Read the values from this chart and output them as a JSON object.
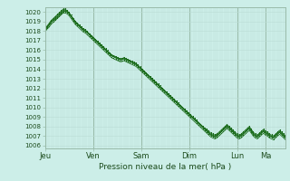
{
  "ylabel": "Pression niveau de la mer( hPa )",
  "bg_color": "#cceee8",
  "grid_minor_color": "#bbddd5",
  "grid_major_color": "#aaccbb",
  "line_color": "#1a6b1a",
  "ylim": [
    1005.7,
    1020.5
  ],
  "yticks": [
    1006,
    1007,
    1008,
    1009,
    1010,
    1011,
    1012,
    1013,
    1014,
    1015,
    1016,
    1017,
    1018,
    1019,
    1020
  ],
  "day_labels": [
    "Jeu",
    "Ven",
    "Sam",
    "Dim",
    "Lun",
    "Ma"
  ],
  "day_positions": [
    0,
    0.2,
    0.4,
    0.6,
    0.8,
    0.9167
  ],
  "n_points": 120,
  "series": [
    [
      1018.0,
      1018.3,
      1018.6,
      1018.9,
      1019.1,
      1019.2,
      1019.4,
      1019.6,
      1019.8,
      1020.0,
      1020.1,
      1020.0,
      1019.8,
      1019.5,
      1019.2,
      1018.9,
      1018.7,
      1018.5,
      1018.3,
      1018.1,
      1018.0,
      1017.8,
      1017.6,
      1017.4,
      1017.2,
      1017.0,
      1016.8,
      1016.6,
      1016.4,
      1016.2,
      1016.0,
      1015.8,
      1015.6,
      1015.4,
      1015.3,
      1015.2,
      1015.1,
      1015.0,
      1015.0,
      1015.1,
      1015.0,
      1014.9,
      1014.8,
      1014.7,
      1014.6,
      1014.5,
      1014.3,
      1014.1,
      1013.9,
      1013.7,
      1013.5,
      1013.3,
      1013.1,
      1012.9,
      1012.7,
      1012.5,
      1012.3,
      1012.1,
      1011.9,
      1011.7,
      1011.5,
      1011.3,
      1011.1,
      1010.9,
      1010.7,
      1010.5,
      1010.3,
      1010.1,
      1009.9,
      1009.7,
      1009.5,
      1009.3,
      1009.1,
      1008.9,
      1008.7,
      1008.5,
      1008.3,
      1008.1,
      1007.9,
      1007.7,
      1007.5,
      1007.3,
      1007.1,
      1007.0,
      1006.9,
      1007.0,
      1007.2,
      1007.4,
      1007.6,
      1007.8,
      1008.0,
      1007.8,
      1007.6,
      1007.4,
      1007.2,
      1007.0,
      1006.9,
      1007.0,
      1007.2,
      1007.4,
      1007.6,
      1007.8,
      1007.5,
      1007.2,
      1007.0,
      1006.9,
      1007.1,
      1007.3,
      1007.5,
      1007.3,
      1007.2,
      1007.0,
      1006.9,
      1006.8,
      1007.0,
      1007.2,
      1007.4,
      1007.2,
      1007.0,
      1006.8
    ],
    [
      1018.2,
      1018.5,
      1018.7,
      1019.0,
      1019.2,
      1019.4,
      1019.6,
      1019.8,
      1020.0,
      1020.2,
      1020.2,
      1020.1,
      1019.9,
      1019.6,
      1019.3,
      1019.0,
      1018.8,
      1018.6,
      1018.4,
      1018.2,
      1018.1,
      1017.9,
      1017.7,
      1017.5,
      1017.3,
      1017.1,
      1016.9,
      1016.7,
      1016.5,
      1016.3,
      1016.1,
      1015.9,
      1015.7,
      1015.5,
      1015.4,
      1015.3,
      1015.2,
      1015.1,
      1015.1,
      1015.2,
      1015.1,
      1015.0,
      1014.9,
      1014.8,
      1014.7,
      1014.6,
      1014.4,
      1014.2,
      1014.0,
      1013.8,
      1013.6,
      1013.4,
      1013.2,
      1013.0,
      1012.8,
      1012.6,
      1012.4,
      1012.2,
      1012.0,
      1011.8,
      1011.6,
      1011.4,
      1011.2,
      1011.0,
      1010.8,
      1010.6,
      1010.4,
      1010.2,
      1010.0,
      1009.8,
      1009.6,
      1009.4,
      1009.2,
      1009.0,
      1008.8,
      1008.6,
      1008.4,
      1008.2,
      1008.0,
      1007.8,
      1007.6,
      1007.4,
      1007.2,
      1007.1,
      1007.0,
      1007.1,
      1007.3,
      1007.5,
      1007.7,
      1007.9,
      1008.1,
      1007.9,
      1007.7,
      1007.5,
      1007.3,
      1007.1,
      1007.0,
      1007.1,
      1007.3,
      1007.5,
      1007.7,
      1007.9,
      1007.6,
      1007.3,
      1007.1,
      1007.0,
      1007.2,
      1007.4,
      1007.6,
      1007.4,
      1007.3,
      1007.1,
      1007.0,
      1006.9,
      1007.1,
      1007.3,
      1007.5,
      1007.3,
      1007.1,
      1006.9
    ],
    [
      1018.1,
      1018.4,
      1018.6,
      1018.9,
      1019.1,
      1019.3,
      1019.5,
      1019.7,
      1019.9,
      1020.1,
      1020.1,
      1020.0,
      1019.8,
      1019.5,
      1019.2,
      1018.9,
      1018.7,
      1018.5,
      1018.3,
      1018.1,
      1018.0,
      1017.8,
      1017.6,
      1017.4,
      1017.2,
      1017.0,
      1016.8,
      1016.6,
      1016.4,
      1016.2,
      1016.0,
      1015.8,
      1015.6,
      1015.4,
      1015.3,
      1015.2,
      1015.1,
      1015.0,
      1015.0,
      1015.1,
      1015.0,
      1014.9,
      1014.8,
      1014.7,
      1014.6,
      1014.5,
      1014.3,
      1014.1,
      1013.9,
      1013.7,
      1013.5,
      1013.3,
      1013.1,
      1012.9,
      1012.7,
      1012.5,
      1012.3,
      1012.1,
      1011.9,
      1011.7,
      1011.5,
      1011.3,
      1011.1,
      1010.9,
      1010.7,
      1010.5,
      1010.3,
      1010.1,
      1009.9,
      1009.7,
      1009.5,
      1009.3,
      1009.1,
      1008.9,
      1008.7,
      1008.5,
      1008.3,
      1008.1,
      1007.9,
      1007.7,
      1007.5,
      1007.3,
      1007.1,
      1007.0,
      1006.9,
      1007.0,
      1007.2,
      1007.4,
      1007.6,
      1007.8,
      1008.0,
      1007.8,
      1007.6,
      1007.4,
      1007.2,
      1007.0,
      1006.9,
      1007.0,
      1007.2,
      1007.4,
      1007.6,
      1007.8,
      1007.5,
      1007.2,
      1007.0,
      1006.9,
      1007.1,
      1007.3,
      1007.5,
      1007.3,
      1007.2,
      1007.0,
      1006.9,
      1006.8,
      1007.0,
      1007.2,
      1007.4,
      1007.2,
      1007.0,
      1006.8
    ],
    [
      1018.3,
      1018.5,
      1018.8,
      1019.1,
      1019.3,
      1019.5,
      1019.7,
      1019.9,
      1020.1,
      1020.3,
      1020.3,
      1020.1,
      1019.9,
      1019.6,
      1019.3,
      1019.0,
      1018.8,
      1018.6,
      1018.4,
      1018.2,
      1018.1,
      1017.9,
      1017.7,
      1017.5,
      1017.3,
      1017.1,
      1016.9,
      1016.7,
      1016.5,
      1016.3,
      1016.1,
      1015.9,
      1015.7,
      1015.5,
      1015.4,
      1015.3,
      1015.2,
      1015.1,
      1015.1,
      1015.2,
      1015.1,
      1015.0,
      1014.9,
      1014.8,
      1014.7,
      1014.6,
      1014.4,
      1014.2,
      1014.0,
      1013.8,
      1013.6,
      1013.4,
      1013.2,
      1013.0,
      1012.8,
      1012.6,
      1012.4,
      1012.2,
      1012.0,
      1011.8,
      1011.6,
      1011.4,
      1011.2,
      1011.0,
      1010.8,
      1010.6,
      1010.4,
      1010.2,
      1010.0,
      1009.8,
      1009.6,
      1009.4,
      1009.2,
      1009.0,
      1008.8,
      1008.6,
      1008.4,
      1008.2,
      1008.0,
      1007.8,
      1007.7,
      1007.5,
      1007.3,
      1007.2,
      1007.1,
      1007.2,
      1007.4,
      1007.6,
      1007.8,
      1008.0,
      1008.2,
      1008.0,
      1007.8,
      1007.6,
      1007.4,
      1007.2,
      1007.1,
      1007.2,
      1007.4,
      1007.6,
      1007.8,
      1008.0,
      1007.7,
      1007.4,
      1007.2,
      1007.1,
      1007.3,
      1007.5,
      1007.7,
      1007.5,
      1007.4,
      1007.2,
      1007.1,
      1007.0,
      1007.2,
      1007.4,
      1007.6,
      1007.4,
      1007.2,
      1007.0
    ],
    [
      1017.9,
      1018.2,
      1018.4,
      1018.7,
      1018.9,
      1019.1,
      1019.3,
      1019.5,
      1019.7,
      1019.9,
      1019.9,
      1019.8,
      1019.6,
      1019.3,
      1019.0,
      1018.7,
      1018.5,
      1018.3,
      1018.1,
      1017.9,
      1017.8,
      1017.6,
      1017.4,
      1017.2,
      1017.0,
      1016.8,
      1016.6,
      1016.4,
      1016.2,
      1016.0,
      1015.8,
      1015.6,
      1015.4,
      1015.2,
      1015.1,
      1015.0,
      1014.9,
      1014.8,
      1014.8,
      1014.9,
      1014.8,
      1014.7,
      1014.6,
      1014.5,
      1014.4,
      1014.3,
      1014.1,
      1013.9,
      1013.7,
      1013.5,
      1013.3,
      1013.1,
      1012.9,
      1012.7,
      1012.5,
      1012.3,
      1012.1,
      1011.9,
      1011.7,
      1011.5,
      1011.3,
      1011.1,
      1010.9,
      1010.7,
      1010.5,
      1010.3,
      1010.1,
      1009.9,
      1009.7,
      1009.5,
      1009.3,
      1009.1,
      1008.9,
      1008.7,
      1008.5,
      1008.3,
      1008.1,
      1007.9,
      1007.7,
      1007.5,
      1007.3,
      1007.1,
      1006.9,
      1006.8,
      1006.7,
      1006.8,
      1007.0,
      1007.2,
      1007.4,
      1007.6,
      1007.8,
      1007.6,
      1007.4,
      1007.2,
      1007.0,
      1006.8,
      1006.7,
      1006.8,
      1007.0,
      1007.2,
      1007.4,
      1007.6,
      1007.3,
      1007.0,
      1006.8,
      1006.7,
      1006.9,
      1007.1,
      1007.3,
      1007.1,
      1007.0,
      1006.8,
      1006.7,
      1006.6,
      1006.8,
      1007.0,
      1007.2,
      1007.0,
      1006.8,
      1006.6
    ]
  ]
}
